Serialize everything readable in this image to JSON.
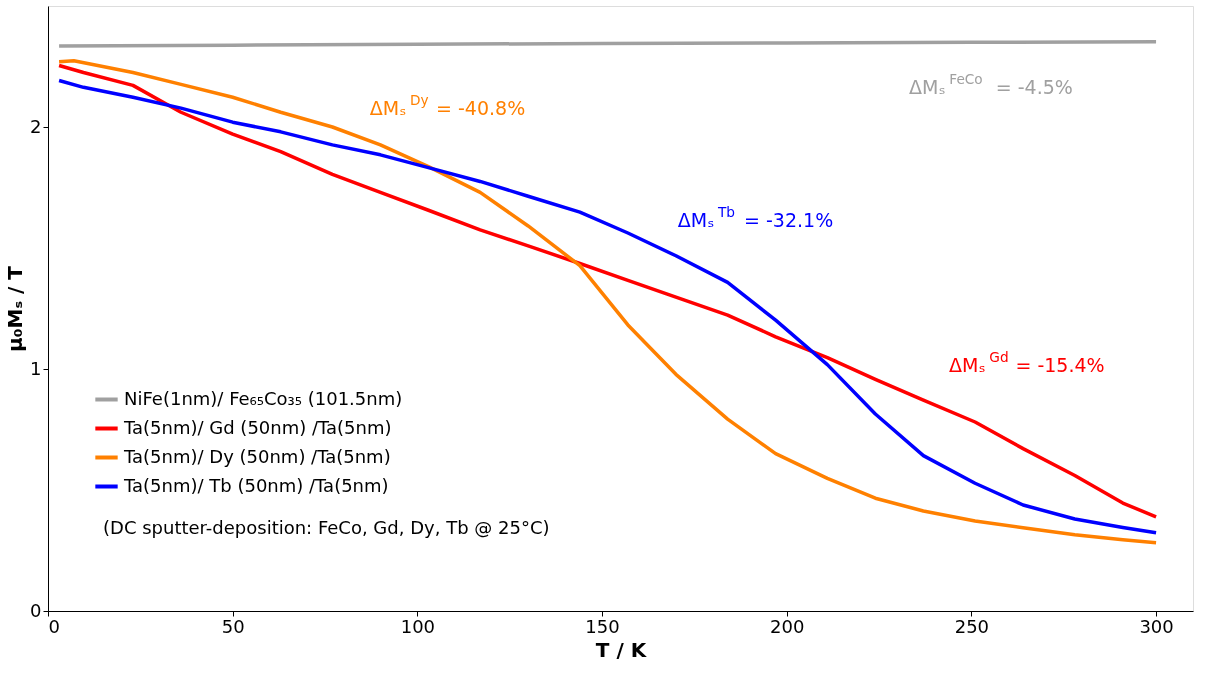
{
  "chart_data": {
    "type": "line",
    "xlabel": "T / K",
    "ylabel": "μ₀Mₛ / T",
    "xlim": [
      0,
      310
    ],
    "ylim": [
      0,
      2.5
    ],
    "xticks": [
      0,
      50,
      100,
      150,
      200,
      250,
      300
    ],
    "yticks": [
      0,
      1,
      2
    ],
    "grid": false,
    "legend": "bottom left",
    "marker": "none",
    "line_style": "solid",
    "series": [
      {
        "name": "NiFe(1nm)/ Fe₆₅Co₃₅ (101.5nm)",
        "color": "#a0a0a0",
        "x": [
          3,
          50,
          100,
          150,
          200,
          250,
          300
        ],
        "values": [
          2.335,
          2.338,
          2.342,
          2.345,
          2.347,
          2.35,
          2.352
        ]
      },
      {
        "name": "Ta(5nm)/   Gd   (50nm)  /Ta(5nm)",
        "color": "#ff0000",
        "x": [
          3,
          9.6,
          23,
          36,
          50,
          63,
          77,
          90,
          103,
          117,
          130,
          144,
          157,
          170,
          184,
          197,
          211,
          224,
          237,
          251,
          264,
          278,
          291,
          300
        ],
        "values": [
          2.254,
          2.225,
          2.172,
          2.061,
          1.971,
          1.898,
          1.804,
          1.73,
          1.656,
          1.575,
          1.509,
          1.436,
          1.366,
          1.297,
          1.223,
          1.133,
          1.047,
          0.957,
          0.871,
          0.781,
          0.671,
          0.56,
          0.446,
          0.389
        ]
      },
      {
        "name": "Ta(5nm)/   Dy   (50nm)  /Ta(5nm)",
        "color": "#ff8000",
        "x": [
          3,
          7,
          23,
          36,
          50,
          63,
          77,
          90,
          103,
          117,
          130,
          144,
          157,
          170,
          184,
          197,
          211,
          224,
          237,
          251,
          264,
          278,
          291,
          300
        ],
        "values": [
          2.27,
          2.274,
          2.225,
          2.176,
          2.123,
          2.061,
          2.0,
          1.926,
          1.836,
          1.73,
          1.591,
          1.427,
          1.182,
          0.978,
          0.793,
          0.65,
          0.548,
          0.466,
          0.413,
          0.372,
          0.344,
          0.315,
          0.294,
          0.282
        ]
      },
      {
        "name": "Ta(5nm)/   Tb   (50nm)  /Ta(5nm)",
        "color": "#0000ff",
        "x": [
          3,
          9.6,
          23,
          36,
          50,
          63,
          77,
          90,
          103,
          117,
          130,
          144,
          157,
          170,
          184,
          197,
          211,
          224,
          237,
          251,
          264,
          278,
          291,
          300
        ],
        "values": [
          2.192,
          2.164,
          2.123,
          2.078,
          2.02,
          1.98,
          1.926,
          1.885,
          1.832,
          1.775,
          1.714,
          1.648,
          1.562,
          1.468,
          1.358,
          1.202,
          1.018,
          0.814,
          0.642,
          0.528,
          0.438,
          0.38,
          0.345,
          0.323
        ]
      }
    ],
    "annotations": [
      "ΔMₛ$^{FeCo}$ = -4.5%",
      "ΔMₛ$^{Dy}$ = -40.8%",
      "ΔMₛ$^{Tb}$ = -32.1%",
      "ΔMₛ$^{Gd}$ = -15.4%",
      "(DC sputter-deposition: FeCo, Gd, Dy, Tb @ 25°C)"
    ]
  }
}
